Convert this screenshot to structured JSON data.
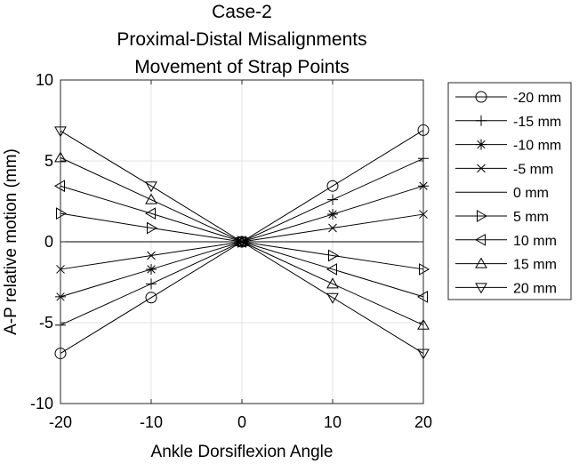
{
  "chart_data": {
    "type": "line",
    "title": [
      "Case-2",
      "Proximal-Distal Misalignments",
      "Movement of Strap Points"
    ],
    "xlabel": "Ankle Dorsiflexion Angle",
    "ylabel": "A-P relative motion (mm)",
    "xlim": [
      -20,
      20
    ],
    "ylim": [
      -10,
      10
    ],
    "xticks": [
      -20,
      -10,
      0,
      10,
      20
    ],
    "yticks": [
      -10,
      -5,
      0,
      5,
      10
    ],
    "xtick_labels": [
      "-20",
      "-10",
      "0",
      "10",
      "20"
    ],
    "ytick_labels": [
      "-10",
      "-5",
      "0",
      "5",
      "10"
    ],
    "grid": true,
    "legend_position": "outside-right",
    "x": [
      -20,
      -10,
      0,
      10,
      20
    ],
    "series": [
      {
        "name": "-20 mm",
        "marker": "circle",
        "values": [
          -6.9,
          -3.45,
          0,
          3.45,
          6.9
        ]
      },
      {
        "name": "-15 mm",
        "marker": "plus",
        "values": [
          -5.15,
          -2.6,
          0,
          2.6,
          5.15
        ]
      },
      {
        "name": "-10 mm",
        "marker": "asterisk",
        "values": [
          -3.4,
          -1.7,
          0,
          1.7,
          3.45
        ]
      },
      {
        "name": "-5 mm",
        "marker": "cross",
        "values": [
          -1.7,
          -0.85,
          0,
          0.85,
          1.7
        ]
      },
      {
        "name": "0 mm",
        "marker": "none",
        "values": [
          0,
          0,
          0,
          0,
          0
        ]
      },
      {
        "name": "5 mm",
        "marker": "triangle-right",
        "values": [
          1.75,
          0.85,
          0,
          -0.85,
          -1.7
        ]
      },
      {
        "name": "10 mm",
        "marker": "triangle-left",
        "values": [
          3.45,
          1.75,
          0,
          -1.7,
          -3.4
        ]
      },
      {
        "name": "15 mm",
        "marker": "triangle-up",
        "values": [
          5.2,
          2.6,
          0,
          -2.6,
          -5.15
        ]
      },
      {
        "name": "20 mm",
        "marker": "triangle-down",
        "values": [
          6.85,
          3.45,
          0,
          -3.45,
          -6.9
        ]
      }
    ],
    "colors": {
      "line": "#000000",
      "grid": "#e3e3e3",
      "axes": "#262626",
      "background": "#ffffff"
    }
  }
}
